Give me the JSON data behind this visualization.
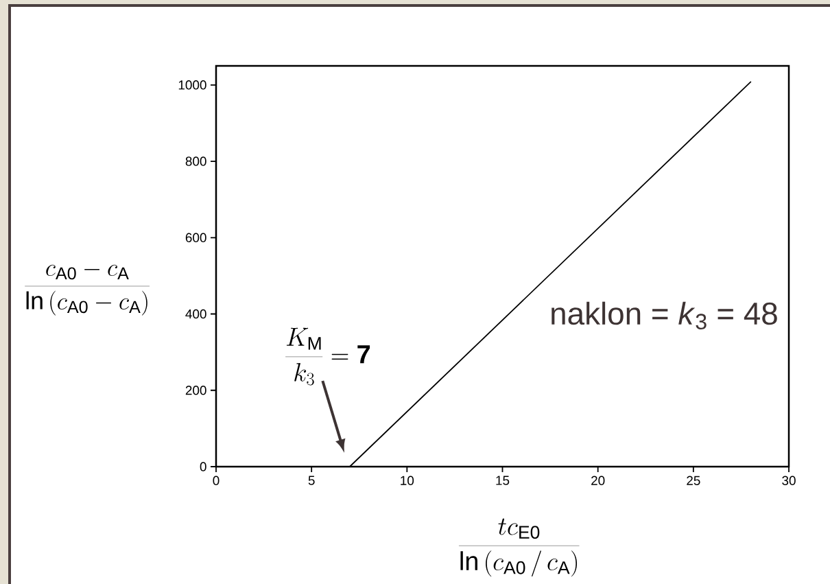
{
  "chart_data": {
    "type": "line",
    "xlabel": "\\frac{tc_{\\mathrm{E0}}}{\\ln\\left(c_{\\mathrm{A0}}\\,/\\,c_{\\mathrm{A}}\\right)}",
    "ylabel": "\\frac{c_{\\mathrm{A0}}-c_{\\mathrm{A}}}{\\ln\\left(c_{\\mathrm{A0}}-c_{\\mathrm{A}}\\right)}",
    "x": [
      7,
      28
    ],
    "values": [
      0,
      1008
    ],
    "color": "#000000",
    "line_style": "solid",
    "xlim": [
      0,
      30
    ],
    "ylim": [
      0,
      1050
    ],
    "xticks": [
      0,
      5,
      10,
      15,
      20,
      25,
      30
    ],
    "yticks": [
      0,
      200,
      400,
      600,
      800,
      1000
    ],
    "annotations": [
      "naklon = *k*$_{3}$ = 48",
      {
        "text": "\\frac{K_{\\mathrm{M}}}{k_{3}}=\\mathbf{7}"
      }
    ]
  }
}
